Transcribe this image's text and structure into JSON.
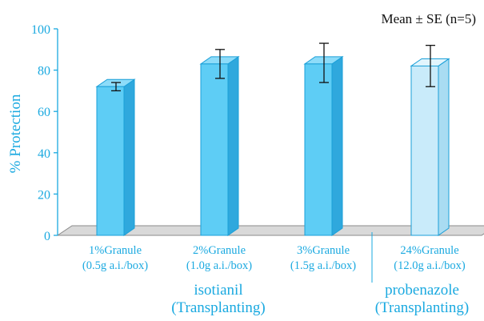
{
  "note": "Mean ± SE (n=5)",
  "groups": [
    {
      "line1": "isotianil",
      "line2": "(Transplanting)"
    },
    {
      "line1": "probenazole",
      "line2": "(Transplanting)"
    }
  ],
  "colors": {
    "text": "#1aa9e0",
    "bar_front": "#5ecdf5",
    "bar_side": "#2fa8dd",
    "bar_top": "#8ddcf9",
    "bar_light_front": "#c9ebfa",
    "bar_light_side": "#a9dcf2",
    "bar_light_top": "#e2f5fd",
    "outline": "#1a9fd8",
    "floor": "#d9d9d9"
  },
  "chart_data": {
    "type": "bar",
    "ylabel": "% Protection",
    "ylim": [
      0,
      100
    ],
    "yticks": [
      0,
      20,
      40,
      60,
      80,
      100
    ],
    "grid": false,
    "categories": [
      {
        "line1": "1%Granule",
        "line2": "(0.5g a.i./box)"
      },
      {
        "line1": "2%Granule",
        "line2": "(1.0g a.i./box)"
      },
      {
        "line1": "3%Granule",
        "line2": "(1.5g a.i./box)"
      },
      {
        "line1": "24%Granule",
        "line2": "(12.0g a.i./box)"
      }
    ],
    "values": [
      72,
      83,
      83,
      82
    ],
    "error_low": [
      70,
      76,
      74,
      72
    ],
    "error_high": [
      74,
      90,
      93,
      92
    ],
    "bar_styles": [
      "dark",
      "dark",
      "dark",
      "light"
    ]
  }
}
